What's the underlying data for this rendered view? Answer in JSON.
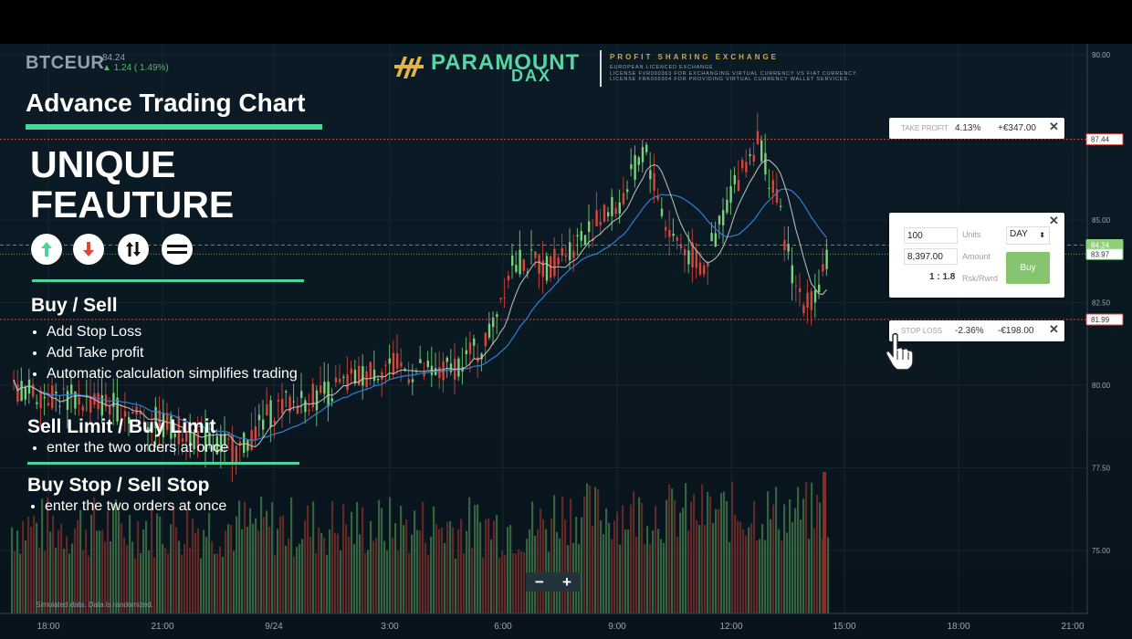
{
  "chart_header": {
    "symbol": "BTCEUR",
    "price": "84.24",
    "change": "1.24 ( 1.49%)",
    "change_direction": "up"
  },
  "brand": {
    "name_line1": "PARAMOUNT",
    "name_line2": "DAX",
    "tagline": "PROFIT SHARING EXCHANGE",
    "license_lines": [
      "EUROPEAN LICENCED EXCHANGE",
      "LICENSE FVR000363 FOR EXCHANGING VIRTUAL CURRENCY VS FIAT CURRENCY.",
      "LICENSE FRK000304 FOR PROVIDING VIRTUAL CURRENCY WALLET SERVICES."
    ],
    "accent_color": "#55d6a4",
    "gold_color": "#cfa84a"
  },
  "overlay": {
    "title": "Advance Trading Chart",
    "headline": "UNIQUE FEAUTURE",
    "icons": [
      "arrow-up-icon",
      "arrow-down-icon",
      "up-down-arrows-icon",
      "menu-lines-icon"
    ],
    "sections": [
      {
        "heading": "Buy / Sell",
        "items": [
          "Add Stop Loss",
          "Add Take profit",
          "Automatic calculation simplifies trading"
        ]
      },
      {
        "heading": "Sell Limit / Buy Limit",
        "items": [
          "enter the two orders at once"
        ]
      },
      {
        "heading": "Buy Stop / Sell Stop",
        "items": [
          "enter the two orders at once"
        ]
      }
    ]
  },
  "take_profit": {
    "label": "TAKE PROFIT",
    "percent": "4.13%",
    "amount": "+€347.00",
    "close": "✕"
  },
  "stop_loss": {
    "label": "STOP LOSS",
    "percent": "-2.36%",
    "amount": "-€198.00",
    "close": "✕"
  },
  "order_panel": {
    "units_value": "100",
    "units_label": "Units",
    "duration": "DAY",
    "amount_value": "8,397.00",
    "amount_label": "Amount",
    "ratio": "1 : 1.8",
    "ratio_label": "Rsk/Rwrd",
    "buy_label": "Buy",
    "close": "✕"
  },
  "zoom": {
    "minus": "−",
    "plus": "+"
  },
  "footnote": "Simulated data. Data is randomized.",
  "price_axis": {
    "ticks": [
      "90.00",
      "85.00",
      "82.50",
      "80.00",
      "77.50",
      "75.00"
    ],
    "markers": {
      "take_profit": "87.44",
      "current": "84.24",
      "entry": "83.97",
      "stop_loss": "81.99"
    }
  },
  "time_axis": {
    "ticks": [
      "18:00",
      "21:00",
      "9/24",
      "3:00",
      "6:00",
      "9:00",
      "12:00",
      "15:00",
      "18:00",
      "21:00"
    ]
  },
  "colors": {
    "up": "#7bd17a",
    "down": "#d8463a",
    "ma_fast": "#c8c8c8",
    "ma_slow": "#2f7fd6",
    "buy": "#86c46f"
  }
}
